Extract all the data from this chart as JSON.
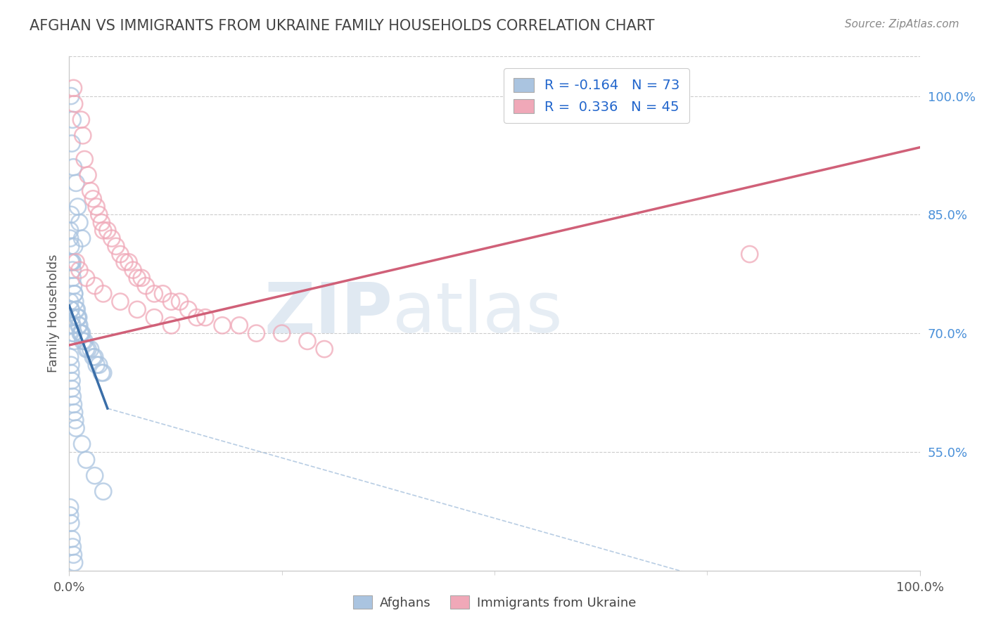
{
  "title": "AFGHAN VS IMMIGRANTS FROM UKRAINE FAMILY HOUSEHOLDS CORRELATION CHART",
  "source": "Source: ZipAtlas.com",
  "ylabel": "Family Households",
  "legend_label1": "Afghans",
  "legend_label2": "Immigrants from Ukraine",
  "r1": -0.164,
  "n1": 73,
  "r2": 0.336,
  "n2": 45,
  "color_blue": "#aac4e0",
  "color_pink": "#f0a8b8",
  "color_blue_line": "#3a6ea8",
  "color_pink_line": "#d06078",
  "watermark_zip": "ZIP",
  "watermark_atlas": "atlas",
  "background_color": "#ffffff",
  "grid_color": "#cccccc",
  "ylim": [
    0.4,
    1.05
  ],
  "xlim": [
    0.0,
    1.0
  ],
  "yticks": [
    0.55,
    0.7,
    0.85,
    1.0
  ],
  "ytick_labels": [
    "55.0%",
    "70.0%",
    "85.0%",
    "100.0%"
  ],
  "xticks": [
    0.0,
    1.0
  ],
  "xtick_labels": [
    "0.0%",
    "100.0%"
  ],
  "blue_scatter_x": [
    0.002,
    0.004,
    0.003,
    0.005,
    0.008,
    0.01,
    0.012,
    0.015,
    0.006,
    0.004,
    0.002,
    0.001,
    0.001,
    0.002,
    0.002,
    0.003,
    0.004,
    0.004,
    0.005,
    0.006,
    0.006,
    0.007,
    0.008,
    0.009,
    0.01,
    0.01,
    0.011,
    0.011,
    0.012,
    0.013,
    0.014,
    0.015,
    0.016,
    0.018,
    0.02,
    0.022,
    0.025,
    0.028,
    0.03,
    0.032,
    0.035,
    0.038,
    0.04,
    0.001,
    0.002,
    0.002,
    0.003,
    0.003,
    0.004,
    0.005,
    0.005,
    0.006,
    0.001,
    0.002,
    0.002,
    0.003,
    0.003,
    0.004,
    0.005,
    0.006,
    0.007,
    0.008,
    0.015,
    0.02,
    0.03,
    0.04,
    0.001,
    0.001,
    0.002,
    0.003,
    0.004,
    0.005,
    0.006
  ],
  "blue_scatter_y": [
    1.0,
    0.97,
    0.94,
    0.91,
    0.89,
    0.86,
    0.84,
    0.82,
    0.81,
    0.79,
    0.85,
    0.83,
    0.82,
    0.81,
    0.79,
    0.79,
    0.78,
    0.77,
    0.76,
    0.75,
    0.75,
    0.74,
    0.73,
    0.73,
    0.72,
    0.72,
    0.72,
    0.71,
    0.71,
    0.7,
    0.7,
    0.7,
    0.69,
    0.69,
    0.68,
    0.68,
    0.68,
    0.67,
    0.67,
    0.66,
    0.66,
    0.65,
    0.65,
    0.74,
    0.73,
    0.73,
    0.72,
    0.71,
    0.71,
    0.7,
    0.7,
    0.69,
    0.67,
    0.66,
    0.65,
    0.64,
    0.63,
    0.62,
    0.61,
    0.6,
    0.59,
    0.58,
    0.56,
    0.54,
    0.52,
    0.5,
    0.48,
    0.47,
    0.46,
    0.44,
    0.43,
    0.42,
    0.41
  ],
  "pink_scatter_x": [
    0.005,
    0.006,
    0.014,
    0.016,
    0.018,
    0.022,
    0.025,
    0.028,
    0.032,
    0.035,
    0.038,
    0.04,
    0.045,
    0.05,
    0.055,
    0.06,
    0.065,
    0.07,
    0.075,
    0.08,
    0.085,
    0.09,
    0.1,
    0.11,
    0.12,
    0.13,
    0.14,
    0.15,
    0.16,
    0.18,
    0.2,
    0.22,
    0.25,
    0.28,
    0.3,
    0.8,
    0.008,
    0.012,
    0.02,
    0.03,
    0.04,
    0.06,
    0.08,
    0.1,
    0.12
  ],
  "pink_scatter_y": [
    1.01,
    0.99,
    0.97,
    0.95,
    0.92,
    0.9,
    0.88,
    0.87,
    0.86,
    0.85,
    0.84,
    0.83,
    0.83,
    0.82,
    0.81,
    0.8,
    0.79,
    0.79,
    0.78,
    0.77,
    0.77,
    0.76,
    0.75,
    0.75,
    0.74,
    0.74,
    0.73,
    0.72,
    0.72,
    0.71,
    0.71,
    0.7,
    0.7,
    0.69,
    0.68,
    0.8,
    0.79,
    0.78,
    0.77,
    0.76,
    0.75,
    0.74,
    0.73,
    0.72,
    0.71
  ],
  "blue_line_x": [
    0.0,
    0.045
  ],
  "blue_line_y": [
    0.735,
    0.605
  ],
  "pink_line_x": [
    0.0,
    1.0
  ],
  "pink_line_y": [
    0.685,
    0.935
  ],
  "dash_line_x": [
    0.045,
    0.75
  ],
  "dash_line_y": [
    0.605,
    0.39
  ]
}
